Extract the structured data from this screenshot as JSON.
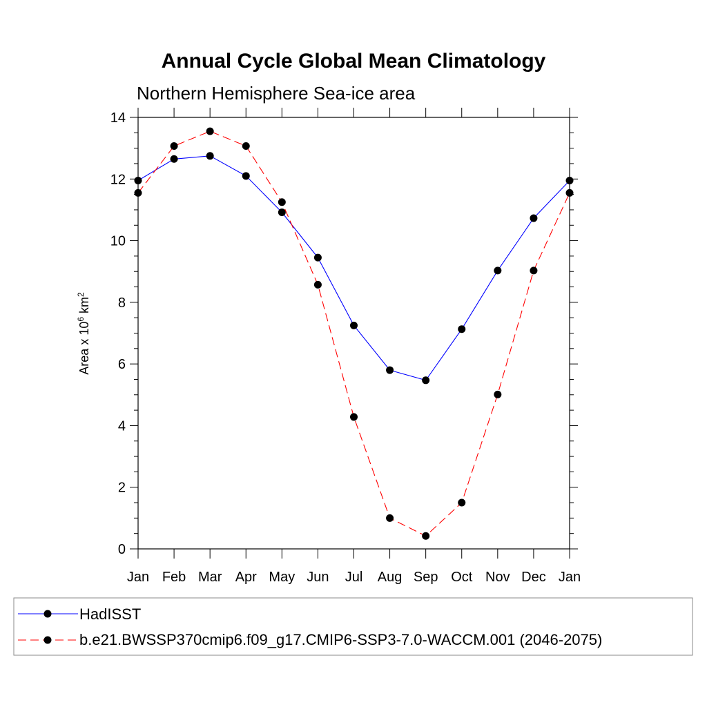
{
  "chart_data": {
    "type": "line",
    "title": "Annual Cycle Global Mean Climatology",
    "subtitle": "Northern Hemisphere Sea-ice area",
    "ylabel_parts": [
      "Area x 10",
      "6",
      " km",
      "2"
    ],
    "categories": [
      "Jan",
      "Feb",
      "Mar",
      "Apr",
      "May",
      "Jun",
      "Jul",
      "Aug",
      "Sep",
      "Oct",
      "Nov",
      "Dec",
      "Jan"
    ],
    "ylim": [
      0,
      14
    ],
    "yticks": [
      "0",
      "2",
      "4",
      "6",
      "8",
      "10",
      "12",
      "14"
    ],
    "grid": false,
    "legend_position": "bottom",
    "series": [
      {
        "name": "HadISST",
        "color": "#0000ff",
        "dash": "solid",
        "values": [
          11.95,
          12.65,
          12.75,
          12.1,
          10.92,
          9.45,
          7.25,
          5.8,
          5.47,
          7.13,
          9.03,
          10.73,
          11.95
        ]
      },
      {
        "name": "b.e21.BWSSP370cmip6.f09_g17.CMIP6-SSP3-7.0-WACCM.001 (2046-2075)",
        "color": "#ff0000",
        "dash": "dashed",
        "values": [
          11.55,
          13.07,
          13.55,
          13.07,
          11.25,
          8.57,
          4.28,
          1.0,
          0.42,
          1.5,
          5.01,
          9.03,
          11.55
        ]
      }
    ]
  }
}
